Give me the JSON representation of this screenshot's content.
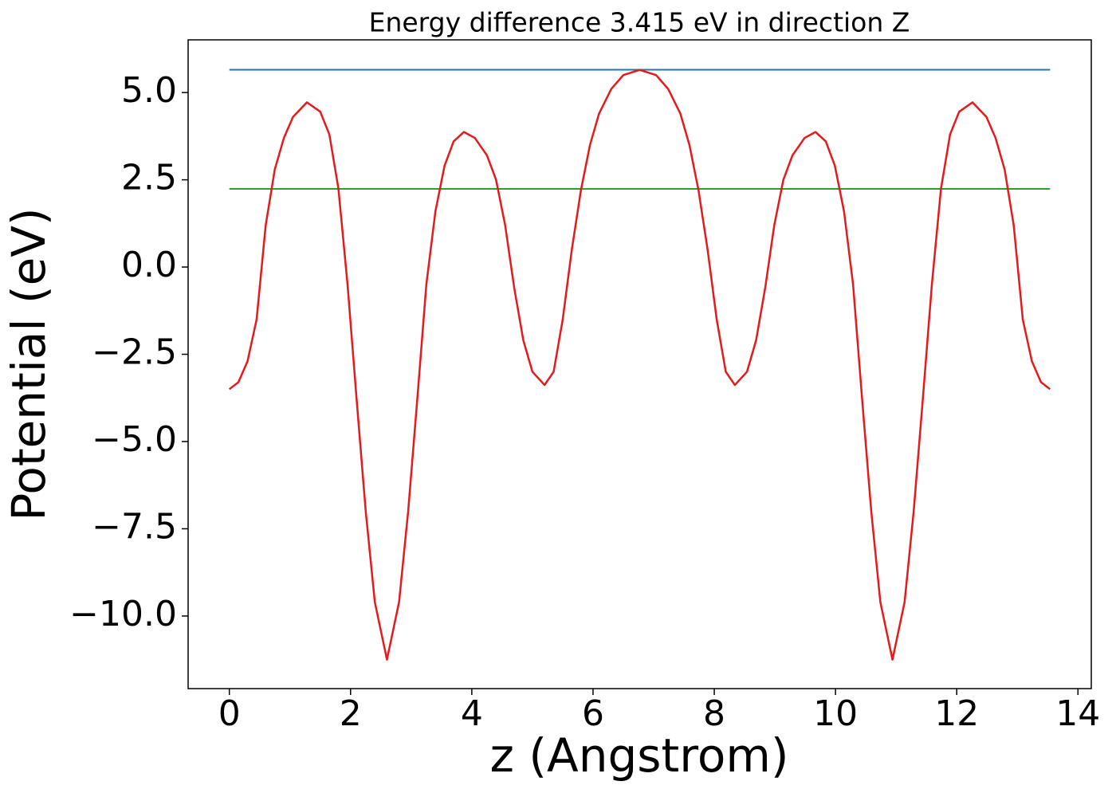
{
  "chart_data": {
    "type": "line",
    "title": "Energy difference 3.415 eV in direction Z",
    "xlabel": "z (Angstrom)",
    "ylabel": "Potential (eV)",
    "xlim": [
      -0.68,
      14.22
    ],
    "ylim": [
      -12.08,
      6.51
    ],
    "xticks": [
      0,
      2,
      4,
      6,
      8,
      10,
      12,
      14
    ],
    "yticks": [
      {
        "value": 5,
        "label": "5.0"
      },
      {
        "value": 2.5,
        "label": "2.5"
      },
      {
        "value": 0,
        "label": "0.0"
      },
      {
        "value": -2.5,
        "label": "−2.5"
      },
      {
        "value": -5,
        "label": "−5.0"
      },
      {
        "value": -7.5,
        "label": "−7.5"
      },
      {
        "value": -10,
        "label": "−10.0"
      }
    ],
    "grid": false,
    "series": [
      {
        "color": "#1f77b4",
        "x": [
          0,
          13.54
        ],
        "values": [
          5.655,
          5.655
        ]
      },
      {
        "color": "#2ca02c",
        "x": [
          0,
          13.54
        ],
        "values": [
          2.24,
          2.24
        ]
      },
      {
        "color": "#e41a1c",
        "x": [
          0,
          0.15,
          0.3,
          0.45,
          0.6,
          0.75,
          0.9,
          1.05,
          1.28,
          1.5,
          1.65,
          1.8,
          1.95,
          2.1,
          2.25,
          2.4,
          2.6,
          2.8,
          2.95,
          3.1,
          3.25,
          3.4,
          3.55,
          3.7,
          3.87,
          4.05,
          4.25,
          4.4,
          4.55,
          4.7,
          4.85,
          5.0,
          5.2,
          5.35,
          5.5,
          5.65,
          5.8,
          5.95,
          6.1,
          6.3,
          6.5,
          6.77,
          7.04,
          7.24,
          7.44,
          7.59,
          7.74,
          7.89,
          8.04,
          8.19,
          8.34,
          8.54,
          8.69,
          8.84,
          8.99,
          9.14,
          9.29,
          9.49,
          9.67,
          9.84,
          9.99,
          10.14,
          10.29,
          10.44,
          10.59,
          10.74,
          10.94,
          11.14,
          11.29,
          11.44,
          11.59,
          11.74,
          11.89,
          12.04,
          12.26,
          12.49,
          12.64,
          12.79,
          12.94,
          13.09,
          13.24,
          13.39,
          13.54
        ],
        "values": [
          -3.5,
          -3.3,
          -2.7,
          -1.5,
          1.2,
          2.8,
          3.7,
          4.3,
          4.72,
          4.45,
          3.8,
          2.24,
          -0.5,
          -3.8,
          -7.0,
          -9.6,
          -11.25,
          -9.6,
          -7.0,
          -3.8,
          -0.5,
          1.6,
          2.9,
          3.6,
          3.87,
          3.7,
          3.2,
          2.5,
          1.2,
          -0.6,
          -2.1,
          -3.0,
          -3.38,
          -3.0,
          -1.5,
          0.5,
          2.2,
          3.5,
          4.4,
          5.1,
          5.5,
          5.65,
          5.5,
          5.1,
          4.4,
          3.5,
          2.2,
          0.5,
          -1.5,
          -3.0,
          -3.38,
          -3.0,
          -2.1,
          -0.6,
          1.2,
          2.5,
          3.2,
          3.7,
          3.87,
          3.6,
          2.9,
          1.6,
          -0.5,
          -3.8,
          -7.0,
          -9.6,
          -11.25,
          -9.6,
          -7.0,
          -3.8,
          -0.5,
          2.24,
          3.8,
          4.45,
          4.72,
          4.3,
          3.7,
          2.8,
          1.2,
          -1.5,
          -2.7,
          -3.3,
          -3.5
        ]
      }
    ]
  }
}
